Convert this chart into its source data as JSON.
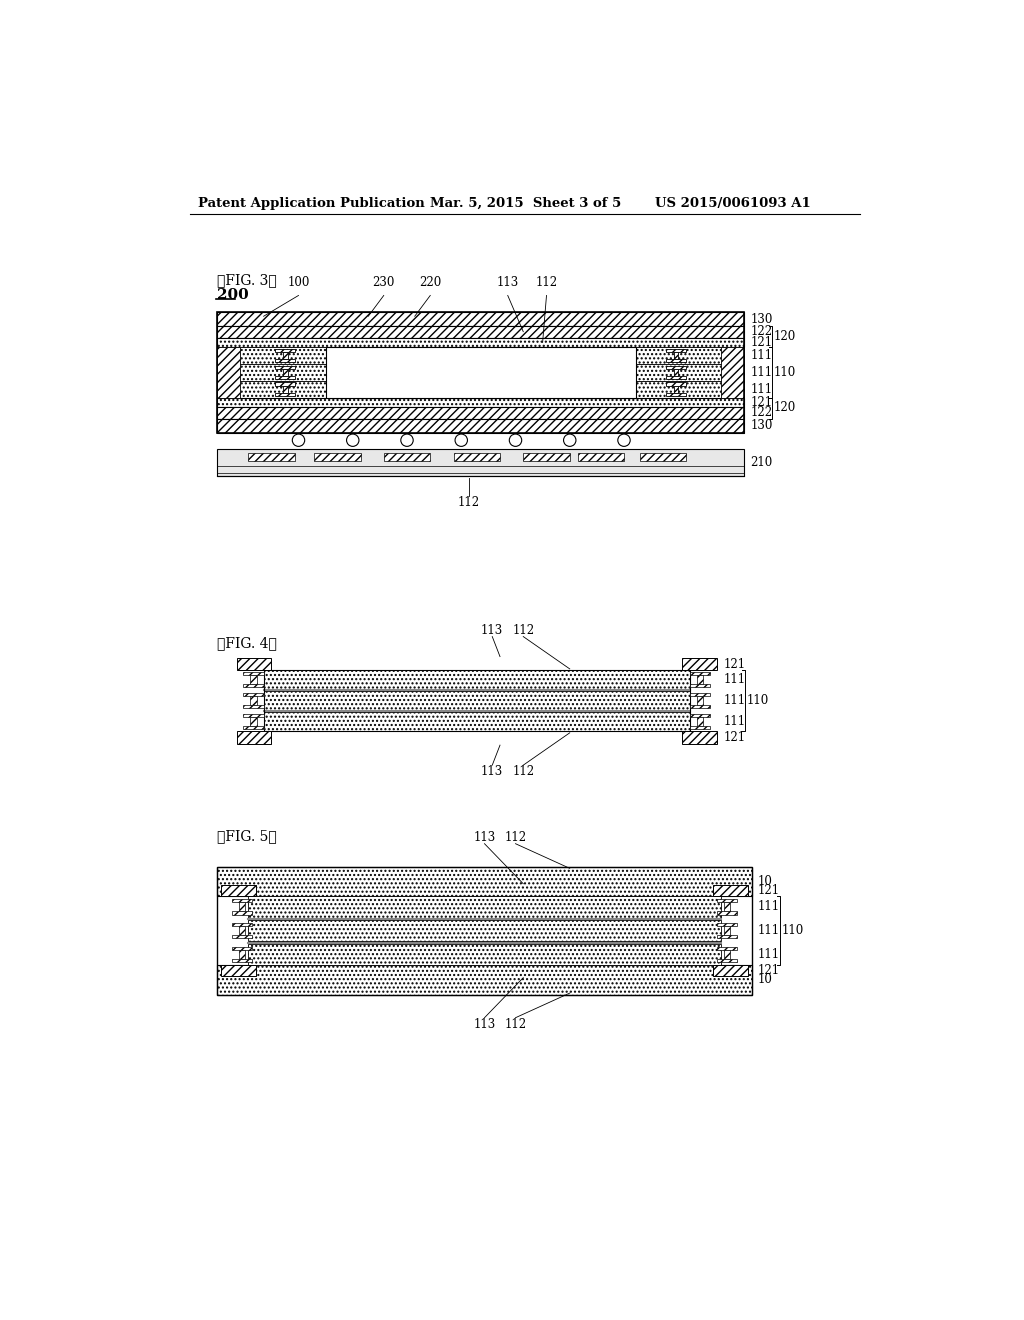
{
  "header_left": "Patent Application Publication",
  "header_mid": "Mar. 5, 2015  Sheet 3 of 5",
  "header_right": "US 2015/0061093 A1",
  "bg_color": "#ffffff",
  "lc": "#000000",
  "fig3_label": "【FIG. 3】",
  "fig3_num": "200",
  "fig4_label": "【FIG. 4】",
  "fig5_label": "【FIG. 5】",
  "lfs": 8.5
}
